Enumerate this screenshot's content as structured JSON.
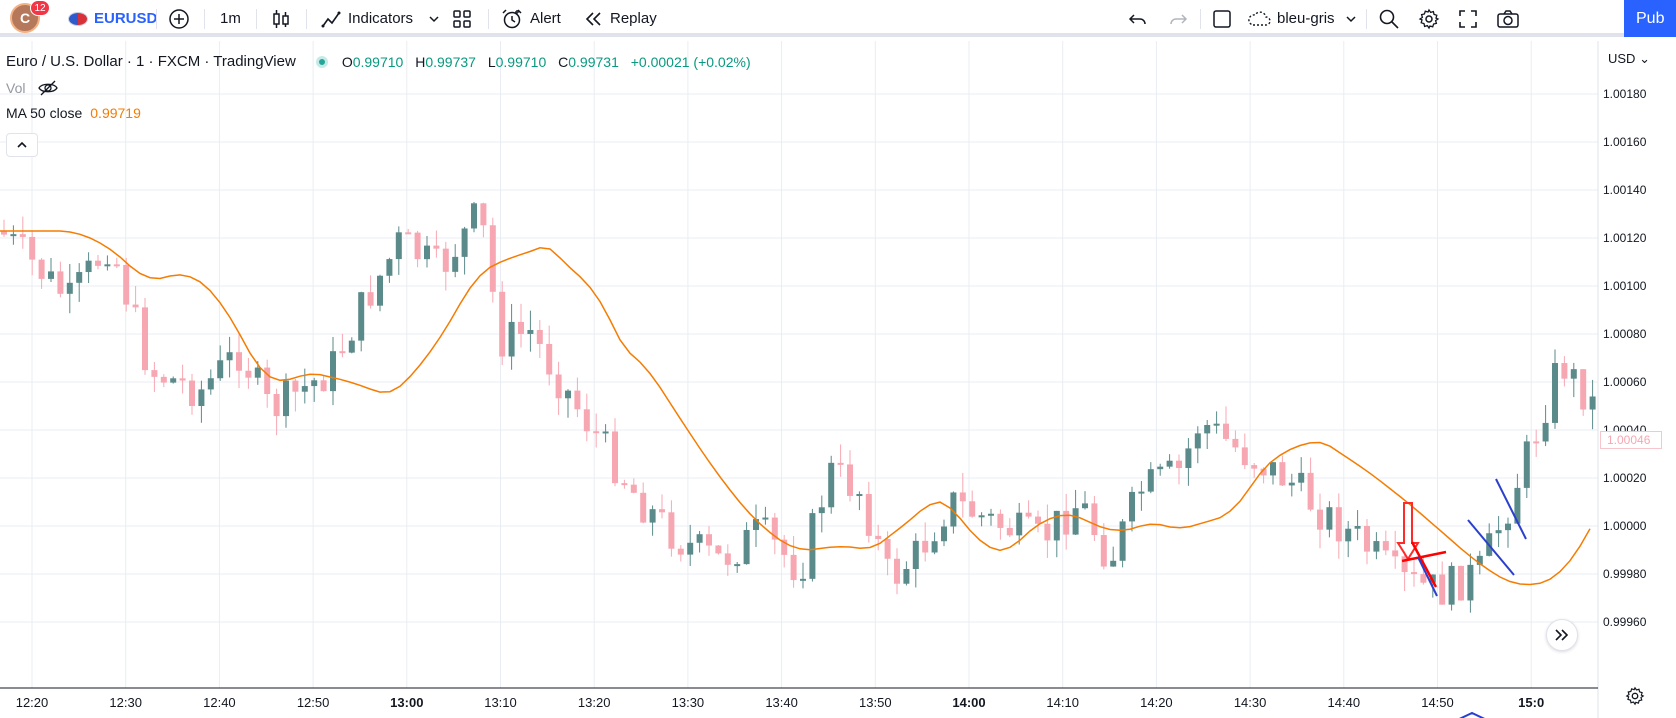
{
  "toolbar": {
    "avatar_letter": "C",
    "notifications": "12",
    "symbol": "EURUSD",
    "interval": "1m",
    "indicators_label": "Indicators",
    "alert_label": "Alert",
    "replay_label": "Replay",
    "layout_name": "bleu-gris",
    "publish_label": "Pub"
  },
  "legend": {
    "title": "Euro / U.S. Dollar · 1 · FXCM · TradingView",
    "open_label": "O",
    "open": "0.99710",
    "high_label": "H",
    "high": "0.99737",
    "low_label": "L",
    "low": "0.99710",
    "close_label": "C",
    "close": "0.99731",
    "change": "+0.00021 (+0.02%)",
    "vol_label": "Vol",
    "ma_label": "MA 50 close",
    "ma_value": "0.99719"
  },
  "price_axis": {
    "currency": "USD",
    "labels": [
      "1.00180",
      "1.00160",
      "1.00140",
      "1.00120",
      "1.00100",
      "1.00080",
      "1.00060",
      "1.00040",
      "1.00020",
      "1.00000",
      "0.99980",
      "0.99960"
    ],
    "last_price": "1.00046"
  },
  "time_axis": {
    "labels": [
      {
        "text": "12:20",
        "bold": false
      },
      {
        "text": "12:30",
        "bold": false
      },
      {
        "text": "12:40",
        "bold": false
      },
      {
        "text": "12:50",
        "bold": false
      },
      {
        "text": "13:00",
        "bold": true
      },
      {
        "text": "13:10",
        "bold": false
      },
      {
        "text": "13:20",
        "bold": false
      },
      {
        "text": "13:30",
        "bold": false
      },
      {
        "text": "13:40",
        "bold": false
      },
      {
        "text": "13:50",
        "bold": false
      },
      {
        "text": "14:00",
        "bold": true
      },
      {
        "text": "14:10",
        "bold": false
      },
      {
        "text": "14:20",
        "bold": false
      },
      {
        "text": "14:30",
        "bold": false
      },
      {
        "text": "14:40",
        "bold": false
      },
      {
        "text": "14:50",
        "bold": false
      },
      {
        "text": "15:0",
        "bold": true
      }
    ]
  },
  "colors": {
    "up": "#5b8a8a",
    "down": "#f7a7b2",
    "ma": "#f57c00",
    "grid": "#e9edf3",
    "accent": "#2962ff",
    "drawing_red": "#ff0000",
    "drawing_blue": "#2b3fcf"
  },
  "icons": [
    "plus-circle-icon",
    "candles-icon",
    "indicators-icon",
    "templates-icon",
    "alarm-clock-icon",
    "replay-icon",
    "undo-icon",
    "redo-icon",
    "square-icon",
    "cloud-icon",
    "search-icon",
    "gear-icon",
    "fullscreen-icon",
    "camera-icon",
    "eye-off-icon",
    "chevron-up-icon",
    "fast-forward-icon"
  ]
}
